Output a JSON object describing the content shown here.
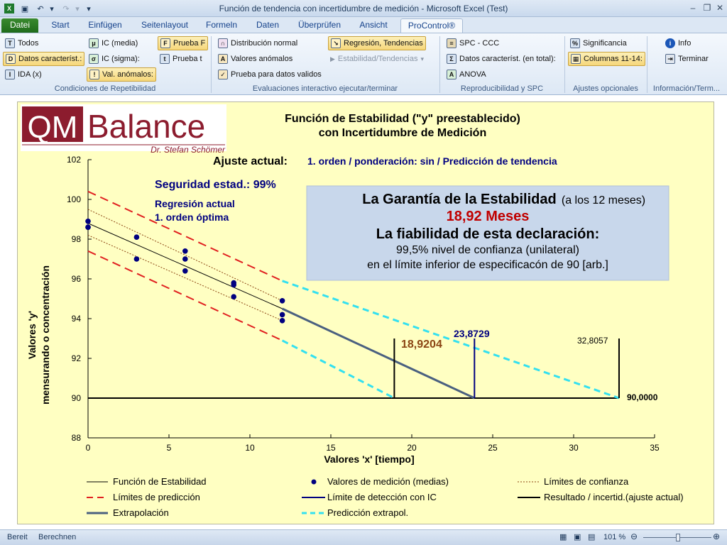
{
  "window": {
    "title": "Función de tendencia con incertidumbre de medición  -  Microsoft Excel (Test)"
  },
  "quick_access": {
    "save": "save-icon",
    "undo": "undo-icon",
    "redo": "redo-icon"
  },
  "tabs": [
    "Datei",
    "Start",
    "Einfügen",
    "Seitenlayout",
    "Formeln",
    "Daten",
    "Überprüfen",
    "Ansicht",
    "ProControl®"
  ],
  "ribbon": {
    "groups": [
      {
        "label": "Condiciones de Repetibilidad",
        "buttons": [
          "Todos",
          "Datos característ.:",
          "IDA (x)",
          "IC (media)",
          "IC (sigma):",
          "Val. anómalos:",
          "Prueba F",
          "Prueba t"
        ]
      },
      {
        "label": "Evaluaciones interactivo ejecutar/terminar",
        "buttons": [
          "Distribución normal",
          "Valores anómalos",
          "Prueba para datos validos",
          "Regresión, Tendencias",
          "Estabilidad/Tendencias"
        ]
      },
      {
        "label": "Reproducibilidad y SPC",
        "buttons": [
          "SPC - CCC",
          "Datos característ. (en total):",
          "ANOVA"
        ]
      },
      {
        "label": "Ajustes opcionales",
        "buttons": [
          "Significancia",
          "Columnas 11-14:"
        ]
      },
      {
        "label": "Información/Term...",
        "buttons": [
          "Info",
          "Terminar"
        ]
      }
    ]
  },
  "chart": {
    "logo_main": "Balance",
    "logo_letters": "QM",
    "logo_sub": "Dr. Stefan Schömer",
    "title_line1": "Función de Estabilidad (\"y\" preestablecido)",
    "title_line2": "con Incertidumbre de Medición",
    "ajuste_label": "Ajuste actual:",
    "ajuste_value": "1. orden / ponderación: sin / Predicción de tendencia",
    "seguridad": "Seguridad estad.: 99%",
    "regresion_line1": "Regresión actual",
    "regresion_line2": "1. orden óptima",
    "box_title": "La Garantía de la Estabilidad",
    "box_title_suffix": "(a los 12 meses)",
    "box_months": "18,92 Meses",
    "box_subtitle": "La fiabilidad de esta declaración:",
    "box_line1": "99,5% nivel de confianza (unilateral)",
    "box_line2": "en el límite inferior de especificacón de 90 [arb.]",
    "label_18": "18,9204",
    "label_23": "23,8729",
    "label_32": "32,8057",
    "label_90": "90,0000",
    "xlabel": "Valores 'x' [tiempo]",
    "ylabel1": "Valores 'y'",
    "ylabel2": "mensurando o concentración",
    "legend": [
      "Función de Estabilidad",
      "Valores de medición (medias)",
      "Límites de confianza",
      "Límites de predicción",
      "Límite de detección con IC",
      "Resultado / incertid.(ajuste actual)",
      "Extrapolación",
      "Predicción extrapol."
    ]
  },
  "chart_data": {
    "type": "scatter",
    "xlim": [
      0,
      35
    ],
    "ylim": [
      88,
      102
    ],
    "xticks": [
      0,
      5,
      10,
      15,
      20,
      25,
      30,
      35
    ],
    "yticks": [
      88,
      90,
      92,
      94,
      96,
      98,
      100,
      102
    ],
    "measurements": {
      "x": [
        0,
        0,
        0,
        3,
        3,
        6,
        6,
        6,
        9,
        9,
        9,
        12,
        12,
        12
      ],
      "y": [
        98.9,
        98.6,
        98.6,
        98.1,
        97.0,
        97.4,
        97.0,
        96.4,
        95.8,
        95.7,
        95.1,
        94.9,
        94.2,
        93.9
      ]
    },
    "stability_fit": {
      "x": [
        0,
        12
      ],
      "y": [
        98.8,
        94.5
      ]
    },
    "confidence_upper": {
      "x": [
        0,
        12
      ],
      "y": [
        99.5,
        94.9
      ]
    },
    "confidence_lower": {
      "x": [
        0,
        12
      ],
      "y": [
        98.2,
        93.9
      ]
    },
    "prediction_upper": {
      "x": [
        0,
        12
      ],
      "y": [
        100.4,
        95.9
      ]
    },
    "prediction_lower": {
      "x": [
        0,
        12
      ],
      "y": [
        97.4,
        92.9
      ]
    },
    "extrapolation": {
      "x": [
        12,
        23.8729
      ],
      "y": [
        94.5,
        90
      ]
    },
    "prediction_extrapolated_upper": {
      "x": [
        12,
        32.8057
      ],
      "y": [
        95.9,
        90
      ]
    },
    "prediction_extrapolated_lower": {
      "x": [
        12,
        18.9204
      ],
      "y": [
        92.9,
        90
      ]
    },
    "spec_limit": 90,
    "results": [
      18.9204,
      23.8729,
      32.8057
    ],
    "result_line_top": 93
  },
  "colors": {
    "fit": "#000000",
    "points": "#000080",
    "confidence": "#8b4513",
    "prediction": "#e02020",
    "detection": "#000080",
    "result": "#000000",
    "extrapolation": "#4a6080",
    "pred_extrapol": "#33e0f0",
    "box_bg": "#c8d7eb",
    "months": "#c00000",
    "label_18": "#8b4513"
  },
  "status": {
    "left1": "Bereit",
    "left2": "Berechnen",
    "zoom": "101 %"
  }
}
